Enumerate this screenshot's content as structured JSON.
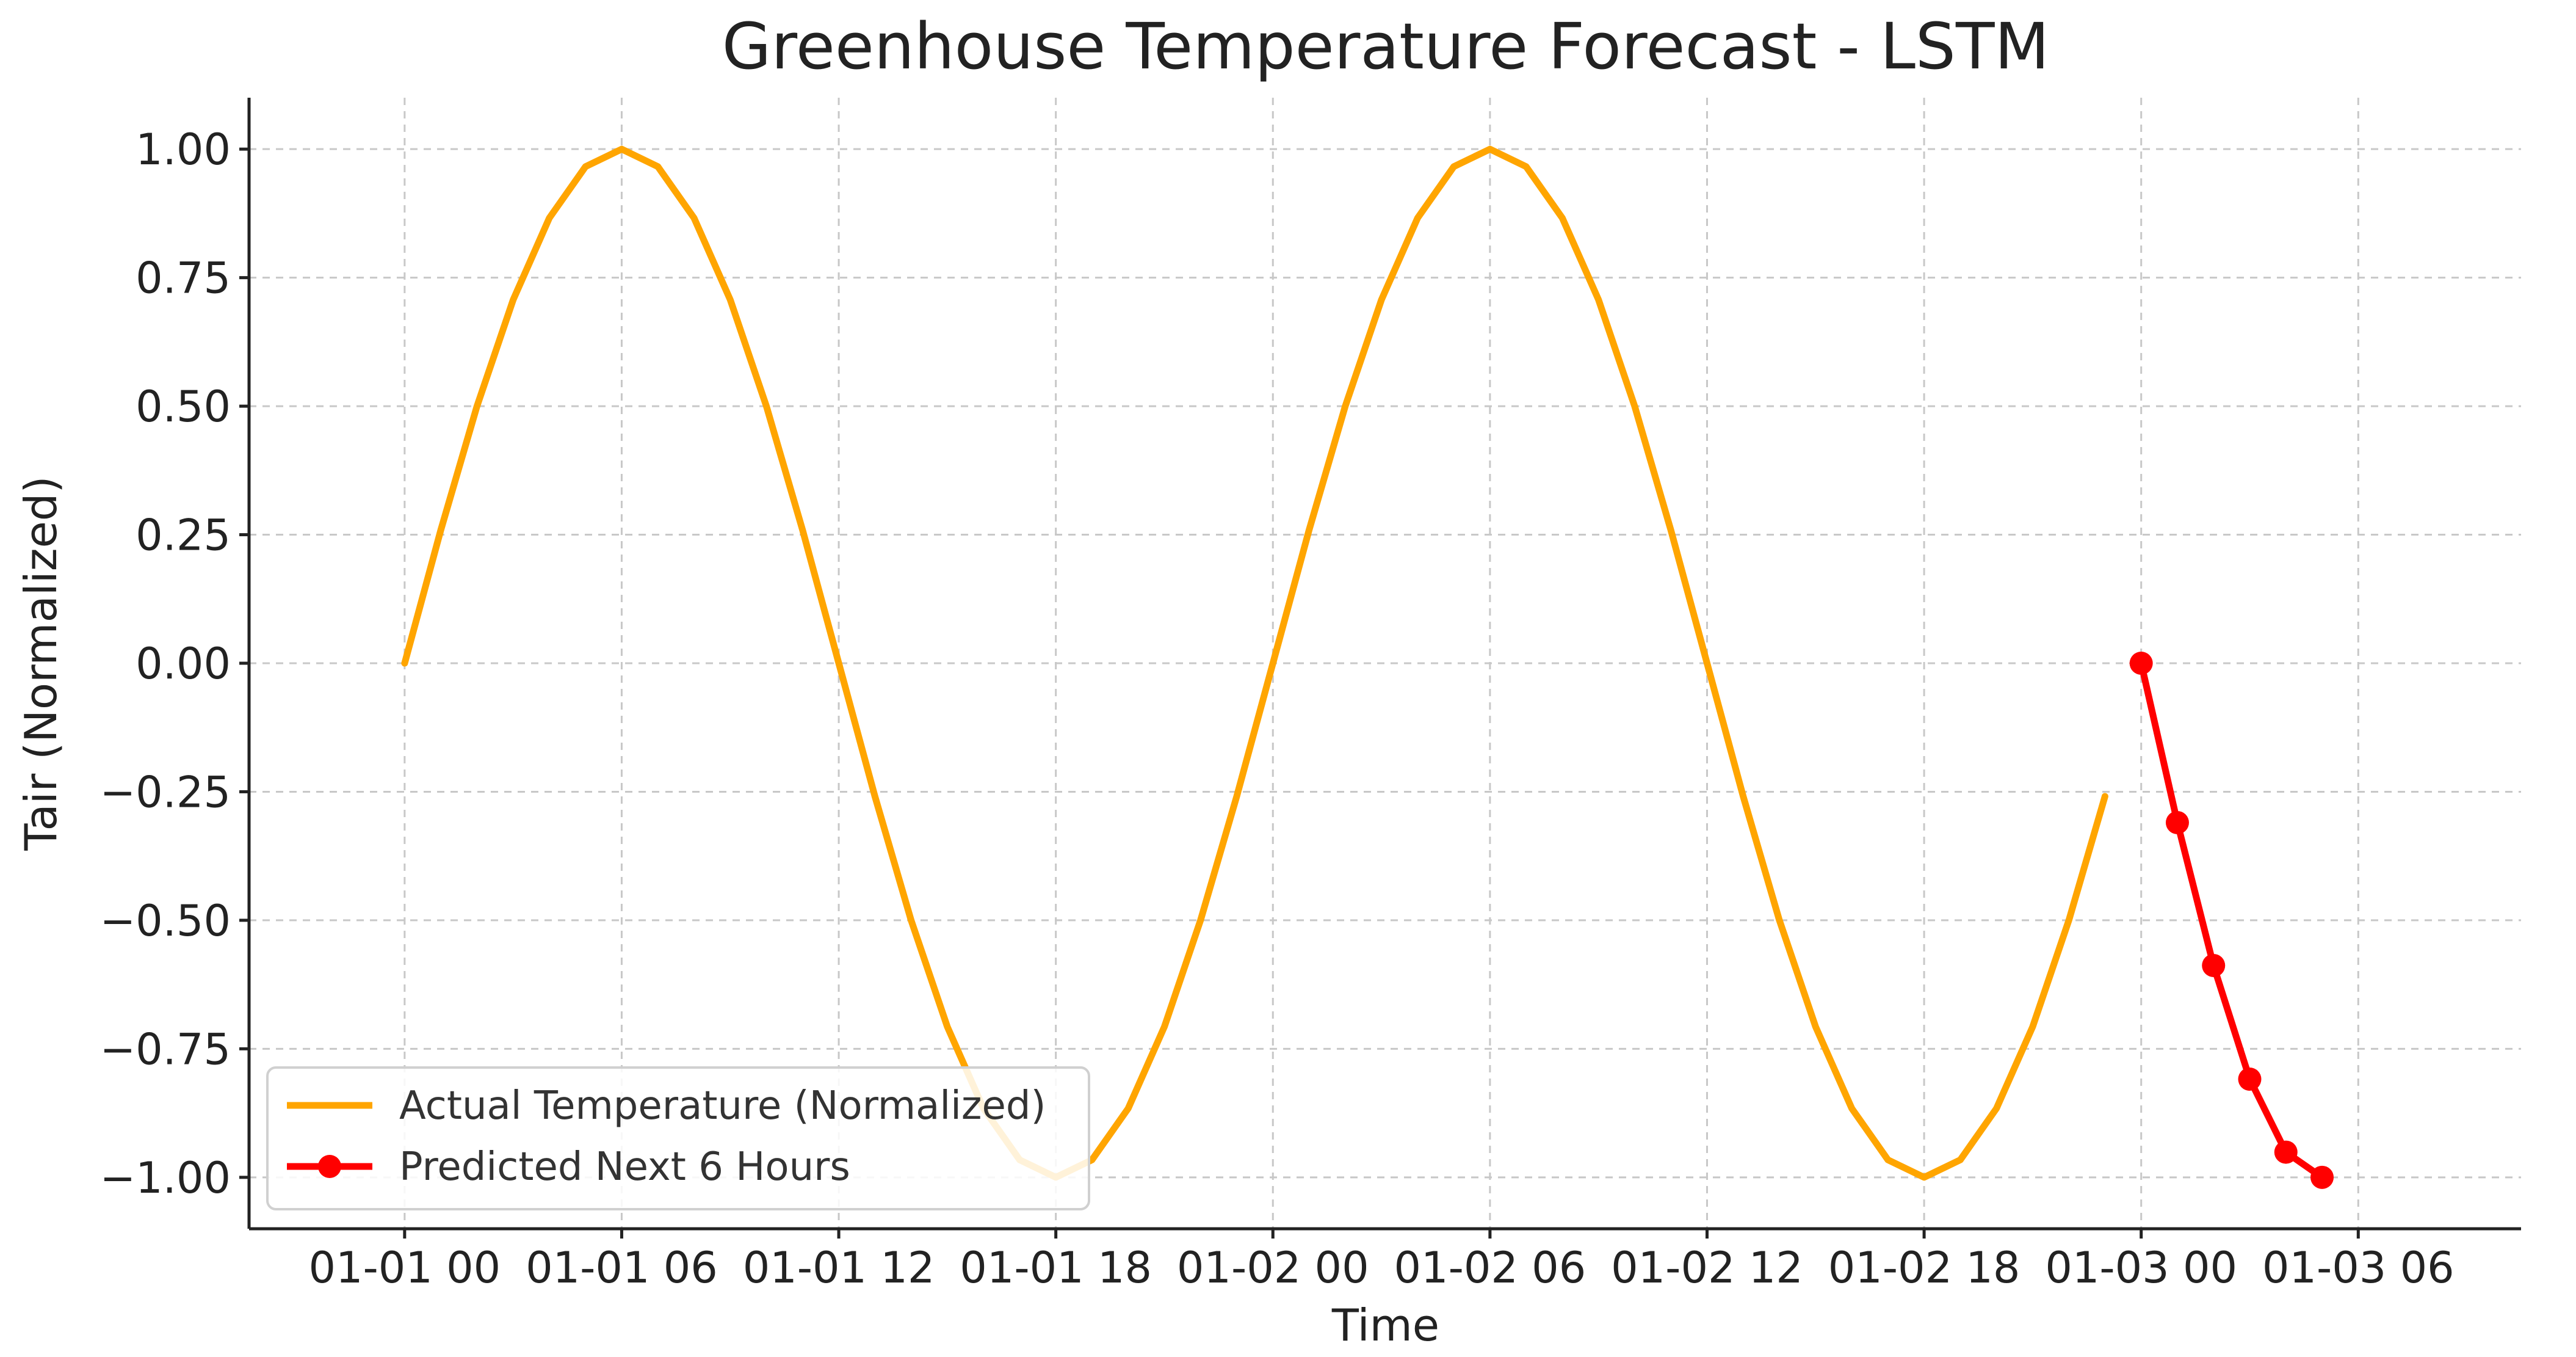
{
  "chart_data": {
    "type": "line",
    "title": "Greenhouse Temperature Forecast - LSTM",
    "xlabel": "Time",
    "ylabel": "Tair (Normalized)",
    "x_unit": "hours since 01-01 00",
    "xlim": [
      -4.3,
      58.5
    ],
    "ylim": [
      -1.1,
      1.1
    ],
    "grid": true,
    "legend_position": "lower-left",
    "x_ticks": [
      {
        "value": 0,
        "label": "01-01 00"
      },
      {
        "value": 6,
        "label": "01-01 06"
      },
      {
        "value": 12,
        "label": "01-01 12"
      },
      {
        "value": 18,
        "label": "01-01 18"
      },
      {
        "value": 24,
        "label": "01-02 00"
      },
      {
        "value": 30,
        "label": "01-02 06"
      },
      {
        "value": 36,
        "label": "01-02 12"
      },
      {
        "value": 42,
        "label": "01-02 18"
      },
      {
        "value": 48,
        "label": "01-03 00"
      },
      {
        "value": 54,
        "label": "01-03 06"
      }
    ],
    "y_ticks": [
      {
        "value": 1.0,
        "label": "1.00"
      },
      {
        "value": 0.75,
        "label": "0.75"
      },
      {
        "value": 0.5,
        "label": "0.50"
      },
      {
        "value": 0.25,
        "label": "0.25"
      },
      {
        "value": 0.0,
        "label": "0.00"
      },
      {
        "value": -0.25,
        "label": "−0.25"
      },
      {
        "value": -0.5,
        "label": "−0.50"
      },
      {
        "value": -0.75,
        "label": "−0.75"
      },
      {
        "value": -1.0,
        "label": "−1.00"
      }
    ],
    "series": [
      {
        "name": "Actual Temperature (Normalized)",
        "color": "#ffa500",
        "marker": "none",
        "x": [
          0,
          1,
          2,
          3,
          4,
          5,
          6,
          7,
          8,
          9,
          10,
          11,
          12,
          13,
          14,
          15,
          16,
          17,
          18,
          19,
          20,
          21,
          22,
          23,
          24,
          25,
          26,
          27,
          28,
          29,
          30,
          31,
          32,
          33,
          34,
          35,
          36,
          37,
          38,
          39,
          40,
          41,
          42,
          43,
          44,
          45,
          46,
          47
        ],
        "y": [
          0,
          0.259,
          0.5,
          0.707,
          0.866,
          0.966,
          1.0,
          0.966,
          0.866,
          0.707,
          0.5,
          0.259,
          0,
          -0.259,
          -0.5,
          -0.707,
          -0.866,
          -0.966,
          -1.0,
          -0.966,
          -0.866,
          -0.707,
          -0.5,
          -0.259,
          0,
          0.259,
          0.5,
          0.707,
          0.866,
          0.966,
          1.0,
          0.966,
          0.866,
          0.707,
          0.5,
          0.259,
          0,
          -0.259,
          -0.5,
          -0.707,
          -0.866,
          -0.966,
          -1.0,
          -0.966,
          -0.866,
          -0.707,
          -0.5,
          -0.259
        ]
      },
      {
        "name": "Predicted Next 6 Hours",
        "color": "#ff0000",
        "marker": "circle",
        "x": [
          48,
          49,
          50,
          51,
          52,
          53
        ],
        "y": [
          0.0,
          -0.31,
          -0.588,
          -0.809,
          -0.951,
          -1.0
        ]
      }
    ]
  }
}
